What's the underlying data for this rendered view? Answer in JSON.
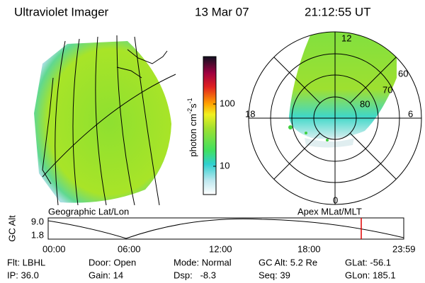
{
  "header": {
    "title": "Ultraviolet Imager",
    "date": "13 Mar 07",
    "time": "21:12:55 UT"
  },
  "colorbar": {
    "unit": {
      "base": "photon cm",
      "exp1": "-2",
      "mid": "s",
      "exp2": "-1"
    },
    "labels": [
      "100",
      "10"
    ]
  },
  "polar": {
    "labels": {
      "top": "12",
      "left": "18",
      "right": "6",
      "bottom": "0"
    },
    "rings": [
      "60",
      "70",
      "80"
    ]
  },
  "panel_labels": {
    "left": "Geographic Lat/Lon",
    "right": "Apex MLat/MLT"
  },
  "altitude_plot": {
    "ylabel": "GC Alt",
    "yticks": [
      "9.0",
      "1.8"
    ],
    "xticks": [
      "00:00",
      "06:00",
      "12:00",
      "18:00",
      "23:59"
    ]
  },
  "info": [
    [
      "Flt: LBHL",
      "IP: 36.0"
    ],
    [
      "Door: Open",
      "Gain: 14"
    ],
    [
      "Mode: Normal",
      "Dsp:   -8.3"
    ],
    [
      "GC Alt: 5.2 Re",
      "Seq: 39"
    ],
    [
      "GLat: -56.1",
      "GLon: 185.1"
    ]
  ]
}
